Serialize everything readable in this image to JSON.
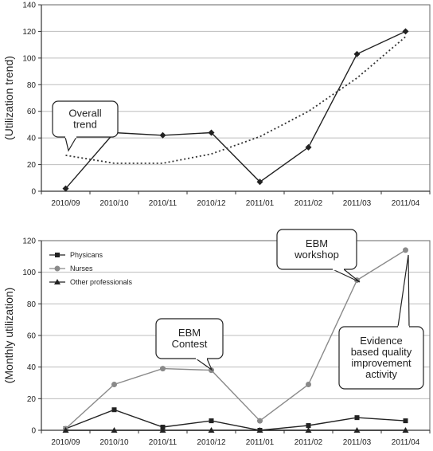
{
  "chart_data": [
    {
      "type": "line",
      "title": "",
      "ylabel": "(Utilization trend)",
      "xlabel": "",
      "categories": [
        "2010/09",
        "2010/10",
        "2010/11",
        "2010/12",
        "2011/01",
        "2011/02",
        "2011/03",
        "2011/04"
      ],
      "ylim": [
        0,
        140
      ],
      "yticks": [
        0,
        20,
        40,
        60,
        80,
        100,
        120,
        140
      ],
      "grid": "horizontal",
      "series": [
        {
          "values": [
            2,
            44,
            42,
            44,
            7,
            33,
            103,
            120
          ],
          "marker": "diamond",
          "color": "#222222"
        },
        {
          "values": [
            27,
            21,
            21,
            28,
            41,
            60,
            85,
            116
          ],
          "style": "dotted",
          "color": "#333333"
        }
      ],
      "annotations": [
        {
          "text": "Overall trend",
          "lines": [
            "Overall",
            "trend"
          ]
        }
      ]
    },
    {
      "type": "line",
      "title": "",
      "ylabel": "(Monthly utilization)",
      "xlabel": "",
      "categories": [
        "2010/09",
        "2010/10",
        "2010/11",
        "2010/12",
        "2011/01",
        "2011/02",
        "2011/03",
        "2011/04"
      ],
      "ylim": [
        0,
        120
      ],
      "yticks": [
        0,
        20,
        40,
        60,
        80,
        100,
        120
      ],
      "grid": "horizontal",
      "legend_position": "top-left",
      "series": [
        {
          "name": "Physicans",
          "values": [
            1,
            13,
            2,
            6,
            0,
            3,
            8,
            6
          ],
          "marker": "square",
          "color": "#222222"
        },
        {
          "name": "Nurses",
          "values": [
            1,
            29,
            39,
            38,
            6,
            29,
            95,
            114
          ],
          "marker": "circle",
          "color": "#8a8a8a"
        },
        {
          "name": "Other professionals",
          "values": [
            0,
            0,
            0,
            0,
            0,
            0,
            0,
            0
          ],
          "marker": "triangle",
          "color": "#222222"
        }
      ],
      "annotations": [
        {
          "text": "EBM workshop",
          "lines": [
            "EBM",
            "workshop"
          ]
        },
        {
          "text": "EBM Contest",
          "lines": [
            "EBM",
            "Contest"
          ]
        },
        {
          "text": "Evidence based quality improvement activity",
          "lines": [
            "Evidence",
            "based quality",
            "improvement",
            "activity"
          ]
        }
      ]
    }
  ]
}
